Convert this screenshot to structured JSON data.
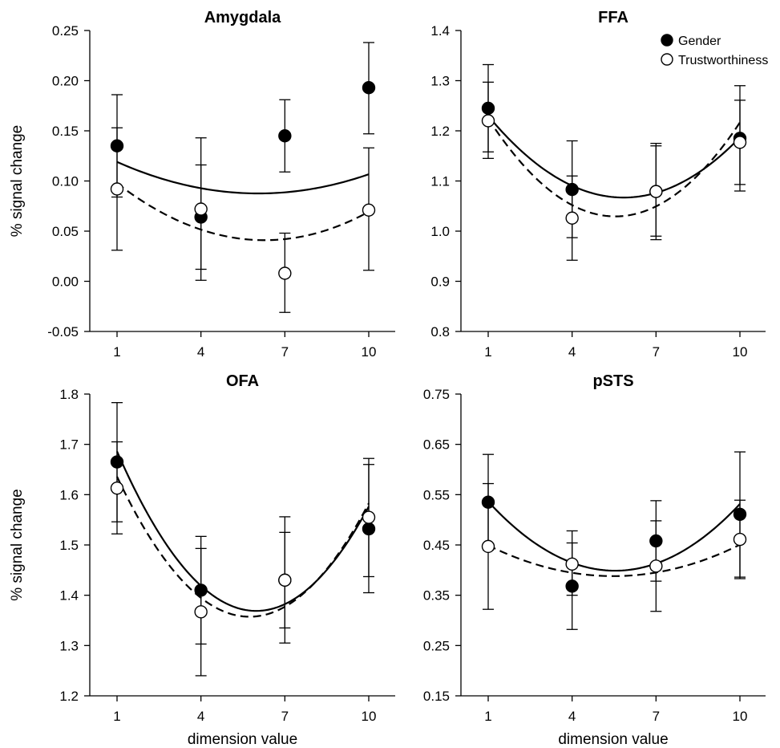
{
  "chart_data": [
    {
      "type": "scatter",
      "title": "Amygdala",
      "xlabel": "",
      "ylabel": "% signal change",
      "x": [
        1,
        4,
        7,
        10
      ],
      "x_tick_labels": [
        "1",
        "4",
        "7",
        "10"
      ],
      "xlim": [
        0,
        11
      ],
      "ylim": [
        -0.05,
        0.25
      ],
      "y_ticks": [
        -0.05,
        0.0,
        0.05,
        0.1,
        0.15,
        0.2,
        0.25
      ],
      "y_tick_labels": [
        "-0.05",
        "0.00",
        "0.05",
        "0.10",
        "0.15",
        "0.20",
        "0.25"
      ],
      "legend": null,
      "series": [
        {
          "name": "Gender",
          "marker": "filled",
          "line": "solid",
          "values": [
            0.135,
            0.064,
            0.145,
            0.193
          ],
          "err_low": [
            0.084,
            0.012,
            0.109,
            0.147
          ],
          "err_high": [
            0.186,
            0.116,
            0.181,
            0.238
          ],
          "fit": [
            0.1327,
            -0.0149,
            0.00123
          ]
        },
        {
          "name": "Trustworthiness",
          "marker": "open",
          "line": "dashed",
          "values": [
            0.092,
            0.072,
            0.008,
            0.071
          ],
          "err_low": [
            0.031,
            0.001,
            -0.031,
            0.011
          ],
          "err_high": [
            0.153,
            0.143,
            0.048,
            0.133
          ],
          "fit": [
            0.1213,
            -0.0256,
            0.00204
          ]
        }
      ]
    },
    {
      "type": "scatter",
      "title": "FFA",
      "xlabel": "",
      "ylabel": "",
      "x": [
        1,
        4,
        7,
        10
      ],
      "x_tick_labels": [
        "1",
        "4",
        "7",
        "10"
      ],
      "xlim": [
        0,
        11
      ],
      "ylim": [
        0.8,
        1.4
      ],
      "y_ticks": [
        0.8,
        0.9,
        1.0,
        1.1,
        1.2,
        1.3,
        1.4
      ],
      "y_tick_labels": [
        "0.8",
        "0.9",
        "1.0",
        "1.1",
        "1.2",
        "1.3",
        "1.4"
      ],
      "legend": "top-right",
      "series": [
        {
          "name": "Gender",
          "marker": "filled",
          "line": "solid",
          "values": [
            1.245,
            1.083,
            1.079,
            1.185
          ],
          "err_low": [
            1.158,
            0.987,
            0.983,
            1.08
          ],
          "err_high": [
            1.332,
            1.18,
            1.175,
            1.29
          ],
          "fit": [
            1.3039,
            -0.0811,
            0.00694
          ]
        },
        {
          "name": "Trustworthiness",
          "marker": "open",
          "line": "dashed",
          "values": [
            1.22,
            1.026,
            1.079,
            1.177
          ],
          "err_low": [
            1.145,
            0.942,
            0.99,
            1.093
          ],
          "err_high": [
            1.297,
            1.11,
            1.17,
            1.261
          ],
          "fit": [
            1.3197,
            -0.1047,
            0.00944
          ]
        }
      ]
    },
    {
      "type": "scatter",
      "title": "OFA",
      "xlabel": "dimension value",
      "ylabel": "% signal change",
      "x": [
        1,
        4,
        7,
        10
      ],
      "x_tick_labels": [
        "1",
        "4",
        "7",
        "10"
      ],
      "xlim": [
        0,
        11
      ],
      "ylim": [
        1.2,
        1.8
      ],
      "y_ticks": [
        1.2,
        1.3,
        1.4,
        1.5,
        1.6,
        1.7,
        1.8
      ],
      "y_tick_labels": [
        "1.2",
        "1.3",
        "1.4",
        "1.5",
        "1.6",
        "1.7",
        "1.8"
      ],
      "legend": null,
      "series": [
        {
          "name": "Gender",
          "marker": "filled",
          "line": "solid",
          "values": [
            1.665,
            1.41,
            1.43,
            1.532
          ],
          "err_low": [
            1.546,
            1.303,
            1.305,
            1.405
          ],
          "err_high": [
            1.783,
            1.517,
            1.556,
            1.66
          ],
          "fit": [
            1.8263,
            -0.1531,
            0.01281
          ]
        },
        {
          "name": "Trustworthiness",
          "marker": "open",
          "line": "dashed",
          "values": [
            1.613,
            1.367,
            1.43,
            1.555
          ],
          "err_low": [
            1.522,
            1.24,
            1.335,
            1.437
          ],
          "err_high": [
            1.705,
            1.493,
            1.525,
            1.672
          ],
          "fit": [
            1.7658,
            -0.1424,
            0.01241
          ]
        }
      ]
    },
    {
      "type": "scatter",
      "title": "pSTS",
      "xlabel": "dimension value",
      "ylabel": "",
      "x": [
        1,
        4,
        7,
        10
      ],
      "x_tick_labels": [
        "1",
        "4",
        "7",
        "10"
      ],
      "xlim": [
        0,
        11
      ],
      "ylim": [
        0.15,
        0.75
      ],
      "y_ticks": [
        0.15,
        0.25,
        0.35,
        0.45,
        0.55,
        0.65,
        0.75
      ],
      "y_tick_labels": [
        "0.15",
        "0.25",
        "0.35",
        "0.45",
        "0.55",
        "0.65",
        "0.75"
      ],
      "legend": null,
      "series": [
        {
          "name": "Gender",
          "marker": "filled",
          "line": "solid",
          "values": [
            0.535,
            0.368,
            0.458,
            0.511
          ],
          "err_low": [
            0.44,
            0.282,
            0.378,
            0.386
          ],
          "err_high": [
            0.63,
            0.454,
            0.538,
            0.635
          ],
          "fit": [
            0.6035,
            -0.0739,
            0.00667
          ]
        },
        {
          "name": "Trustworthiness",
          "marker": "open",
          "line": "dashed",
          "values": [
            0.447,
            0.412,
            0.408,
            0.461
          ],
          "err_low": [
            0.322,
            0.35,
            0.318,
            0.383
          ],
          "err_high": [
            0.572,
            0.478,
            0.498,
            0.539
          ],
          "fit": [
            0.4795,
            -0.0334,
            0.00305
          ]
        }
      ]
    }
  ]
}
